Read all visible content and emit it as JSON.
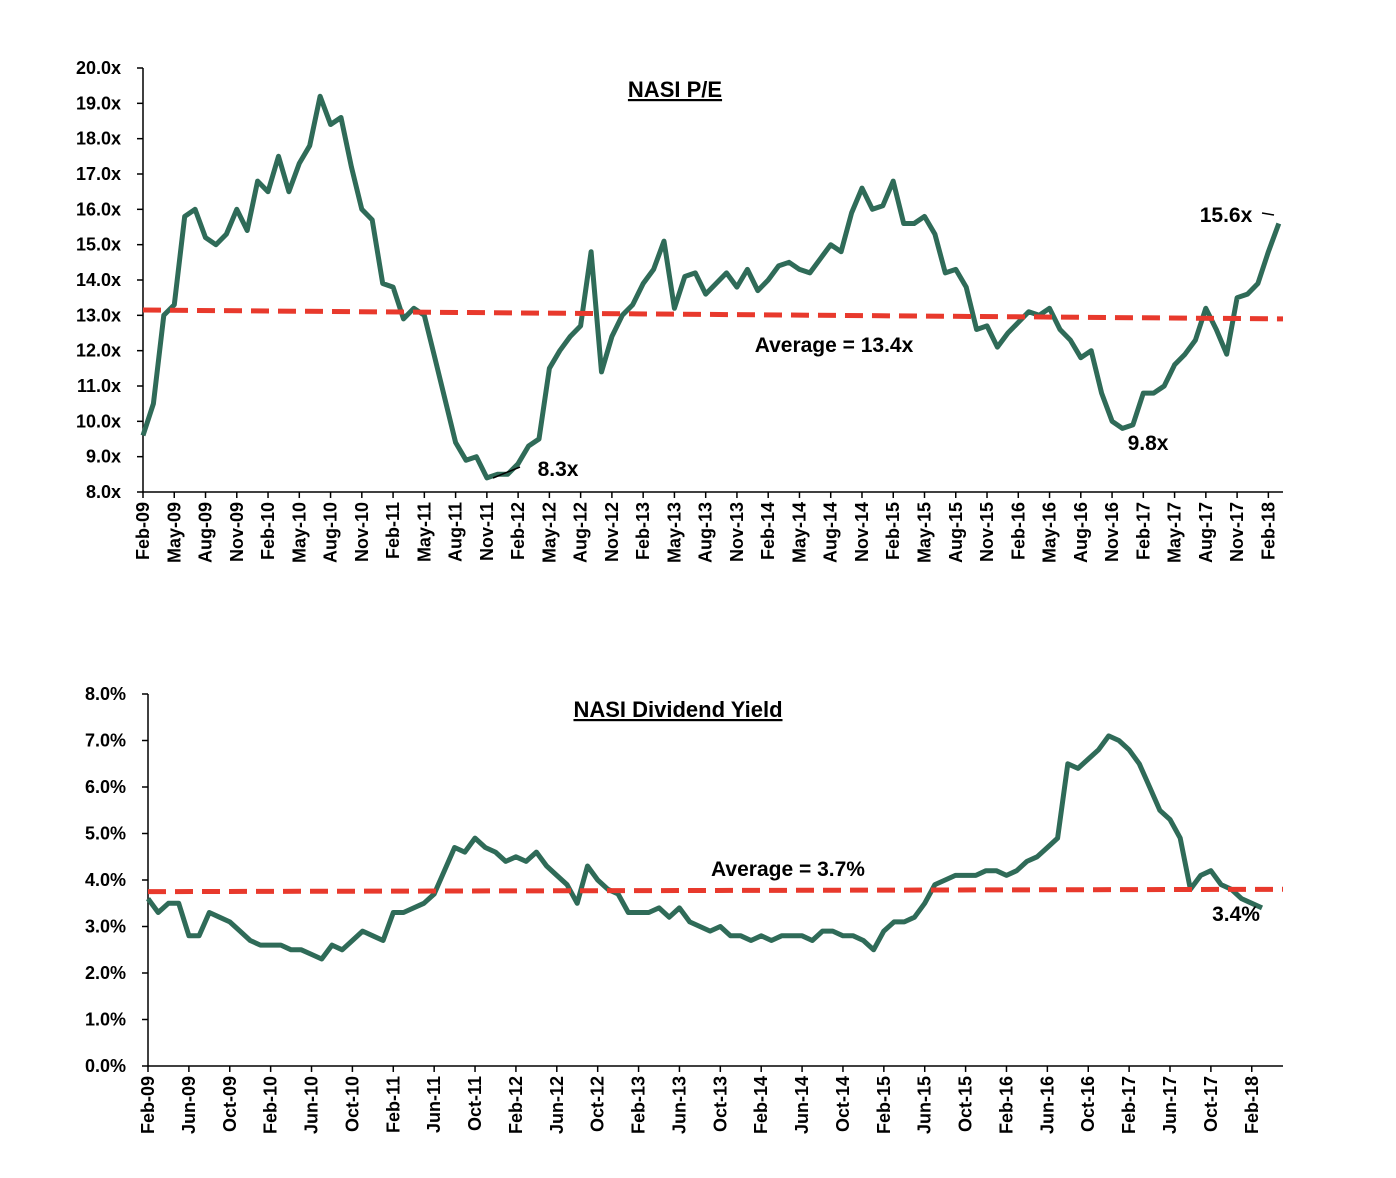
{
  "chart_data": [
    {
      "type": "line",
      "title": "NASI P/E",
      "categories": [
        "Feb-09",
        null,
        null,
        "May-09",
        null,
        null,
        "Aug-09",
        null,
        null,
        "Nov-09",
        null,
        null,
        "Feb-10",
        null,
        null,
        "May-10",
        null,
        null,
        "Aug-10",
        null,
        null,
        "Nov-10",
        null,
        null,
        "Feb-11",
        null,
        null,
        "May-11",
        null,
        null,
        "Aug-11",
        null,
        null,
        "Nov-11",
        null,
        null,
        "Feb-12",
        null,
        null,
        "May-12",
        null,
        null,
        "Aug-12",
        null,
        null,
        "Nov-12",
        null,
        null,
        "Feb-13",
        null,
        null,
        "May-13",
        null,
        null,
        "Aug-13",
        null,
        null,
        "Nov-13",
        null,
        null,
        "Feb-14",
        null,
        null,
        "May-14",
        null,
        null,
        "Aug-14",
        null,
        null,
        "Nov-14",
        null,
        null,
        "Feb-15",
        null,
        null,
        "May-15",
        null,
        null,
        "Aug-15",
        null,
        null,
        "Nov-15",
        null,
        null,
        "Feb-16",
        null,
        null,
        "May-16",
        null,
        null,
        "Aug-16",
        null,
        null,
        "Nov-16",
        null,
        null,
        "Feb-17",
        null,
        null,
        "May-17",
        null,
        null,
        "Aug-17",
        null,
        null,
        "Nov-17",
        null,
        null,
        "Feb-18",
        null
      ],
      "values": [
        9.6,
        10.5,
        13.0,
        13.3,
        15.8,
        16.0,
        15.2,
        15.0,
        15.3,
        16.0,
        15.4,
        16.8,
        16.5,
        17.5,
        16.5,
        17.3,
        17.8,
        19.2,
        18.4,
        18.6,
        17.2,
        16.0,
        15.7,
        13.9,
        13.8,
        12.9,
        13.2,
        13.0,
        11.8,
        10.6,
        9.4,
        8.9,
        9.0,
        8.4,
        8.5,
        8.5,
        8.8,
        9.3,
        9.5,
        11.5,
        12.0,
        12.4,
        12.7,
        14.8,
        11.4,
        12.4,
        13.0,
        13.3,
        13.9,
        14.3,
        15.1,
        13.2,
        14.1,
        14.2,
        13.6,
        13.9,
        14.2,
        13.8,
        14.3,
        13.7,
        14.0,
        14.4,
        14.5,
        14.3,
        14.2,
        14.6,
        15.0,
        14.8,
        15.9,
        16.6,
        16.0,
        16.1,
        16.8,
        15.6,
        15.6,
        15.8,
        15.3,
        14.2,
        14.3,
        13.8,
        12.6,
        12.7,
        12.1,
        12.5,
        12.8,
        13.1,
        13.0,
        13.2,
        12.6,
        12.3,
        11.8,
        12.0,
        10.8,
        10.0,
        9.8,
        9.9,
        10.8,
        10.8,
        11.0,
        11.6,
        11.9,
        12.3,
        13.2,
        12.6,
        11.9,
        13.5,
        13.6,
        13.9,
        14.8,
        15.6
      ],
      "color": "#2f6b58",
      "ylim": [
        8,
        20
      ],
      "yticks": [
        {
          "value": 8,
          "label": "8.0x"
        },
        {
          "value": 9,
          "label": "9.0x"
        },
        {
          "value": 10,
          "label": "10.0x"
        },
        {
          "value": 11,
          "label": "11.0x"
        },
        {
          "value": 12,
          "label": "12.0x"
        },
        {
          "value": 13,
          "label": "13.0x"
        },
        {
          "value": 14,
          "label": "14.0x"
        },
        {
          "value": 15,
          "label": "15.0x"
        },
        {
          "value": 16,
          "label": "16.0x"
        },
        {
          "value": 17,
          "label": "17.0x"
        },
        {
          "value": 18,
          "label": "18.0x"
        },
        {
          "value": 19,
          "label": "19.0x"
        },
        {
          "value": 20,
          "label": "20.0x"
        }
      ],
      "reference_line": {
        "label": "Average = 13.4x",
        "values": [
          13.15,
          12.9
        ],
        "color": "#e8392c"
      },
      "annotations": [
        "8.3x",
        "9.8x",
        "15.6x"
      ]
    },
    {
      "type": "line",
      "title": "NASI Dividend Yield",
      "categories": [
        "Feb-09",
        null,
        null,
        null,
        "Jun-09",
        null,
        null,
        null,
        "Oct-09",
        null,
        null,
        null,
        "Feb-10",
        null,
        null,
        null,
        "Jun-10",
        null,
        null,
        null,
        "Oct-10",
        null,
        null,
        null,
        "Feb-11",
        null,
        null,
        null,
        "Jun-11",
        null,
        null,
        null,
        "Oct-11",
        null,
        null,
        null,
        "Feb-12",
        null,
        null,
        null,
        "Jun-12",
        null,
        null,
        null,
        "Oct-12",
        null,
        null,
        null,
        "Feb-13",
        null,
        null,
        null,
        "Jun-13",
        null,
        null,
        null,
        "Oct-13",
        null,
        null,
        null,
        "Feb-14",
        null,
        null,
        null,
        "Jun-14",
        null,
        null,
        null,
        "Oct-14",
        null,
        null,
        null,
        "Feb-15",
        null,
        null,
        null,
        "Jun-15",
        null,
        null,
        null,
        "Oct-15",
        null,
        null,
        null,
        "Feb-16",
        null,
        null,
        null,
        "Jun-16",
        null,
        null,
        null,
        "Oct-16",
        null,
        null,
        null,
        "Feb-17",
        null,
        null,
        null,
        "Jun-17",
        null,
        null,
        null,
        "Oct-17",
        null,
        null,
        null,
        "Feb-18",
        null
      ],
      "values": [
        3.6,
        3.3,
        3.5,
        3.5,
        2.8,
        2.8,
        3.3,
        3.2,
        3.1,
        2.9,
        2.7,
        2.6,
        2.6,
        2.6,
        2.5,
        2.5,
        2.4,
        2.3,
        2.6,
        2.5,
        2.7,
        2.9,
        2.8,
        2.7,
        3.3,
        3.3,
        3.4,
        3.5,
        3.7,
        4.2,
        4.7,
        4.6,
        4.9,
        4.7,
        4.6,
        4.4,
        4.5,
        4.4,
        4.6,
        4.3,
        4.1,
        3.9,
        3.5,
        4.3,
        4.0,
        3.8,
        3.7,
        3.3,
        3.3,
        3.3,
        3.4,
        3.2,
        3.4,
        3.1,
        3.0,
        2.9,
        3.0,
        2.8,
        2.8,
        2.7,
        2.8,
        2.7,
        2.8,
        2.8,
        2.8,
        2.7,
        2.9,
        2.9,
        2.8,
        2.8,
        2.7,
        2.5,
        2.9,
        3.1,
        3.1,
        3.2,
        3.5,
        3.9,
        4.0,
        4.1,
        4.1,
        4.1,
        4.2,
        4.2,
        4.1,
        4.2,
        4.4,
        4.5,
        4.7,
        4.9,
        6.5,
        6.4,
        6.6,
        6.8,
        7.1,
        7.0,
        6.8,
        6.5,
        6.0,
        5.5,
        5.3,
        4.9,
        3.8,
        4.1,
        4.2,
        3.9,
        3.8,
        3.6,
        3.5,
        3.4
      ],
      "color": "#2f6b58",
      "ylim": [
        0,
        8
      ],
      "yticks": [
        {
          "value": 0,
          "label": "0.0%"
        },
        {
          "value": 1,
          "label": "1.0%"
        },
        {
          "value": 2,
          "label": "2.0%"
        },
        {
          "value": 3,
          "label": "3.0%"
        },
        {
          "value": 4,
          "label": "4.0%"
        },
        {
          "value": 5,
          "label": "5.0%"
        },
        {
          "value": 6,
          "label": "6.0%"
        },
        {
          "value": 7,
          "label": "7.0%"
        },
        {
          "value": 8,
          "label": "8.0%"
        }
      ],
      "reference_line": {
        "label": "Average = 3.7%",
        "values": [
          3.75,
          3.8
        ],
        "color": "#e8392c"
      },
      "annotations": [
        "3.4%"
      ]
    }
  ]
}
